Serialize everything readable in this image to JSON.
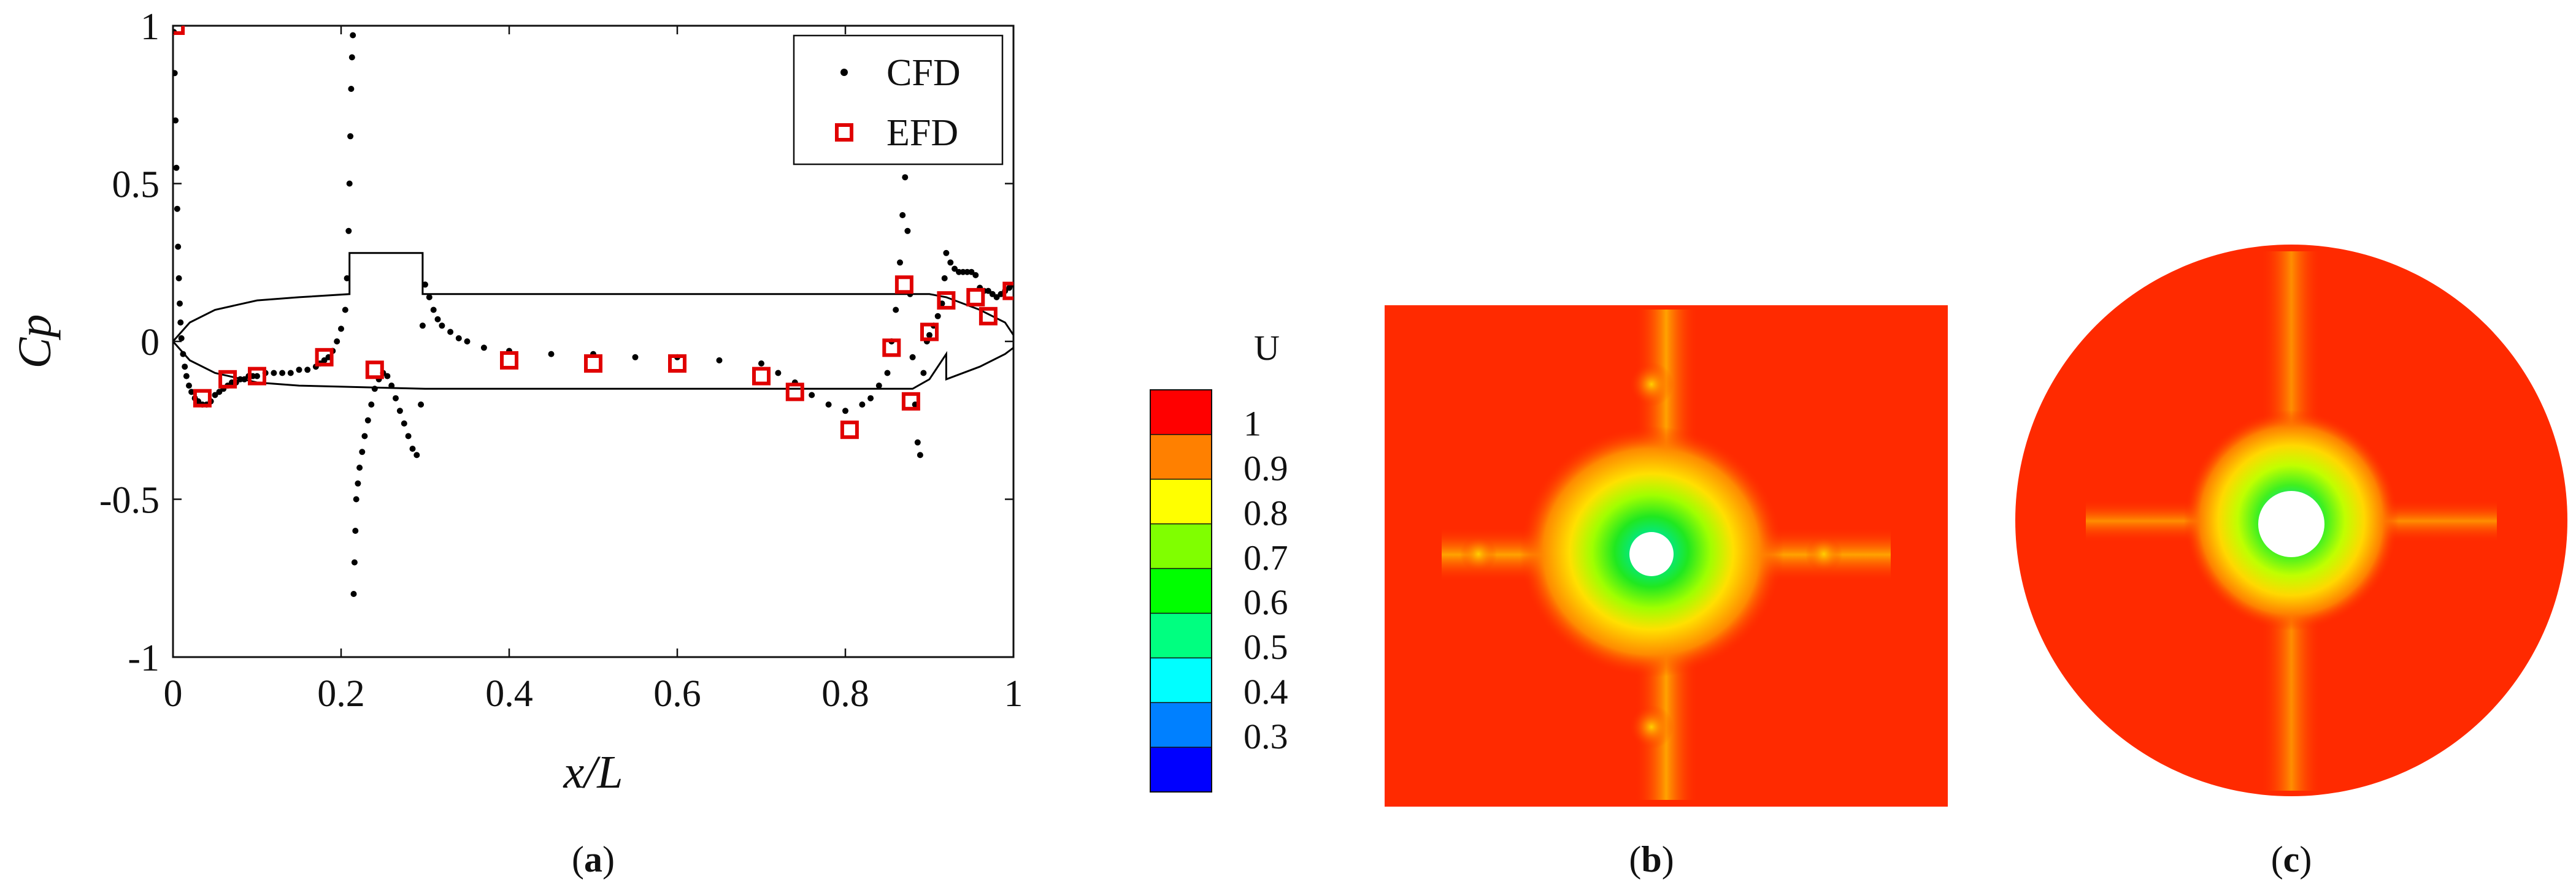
{
  "figure": {
    "panels": [
      {
        "id": "a",
        "open": "(",
        "letter": "a",
        "close": ")"
      },
      {
        "id": "b",
        "open": "(",
        "letter": "b",
        "close": ")"
      },
      {
        "id": "c",
        "open": "(",
        "letter": "c",
        "close": ")"
      }
    ]
  },
  "chart_data": [
    {
      "type": "scatter",
      "xlabel": "x/L",
      "ylabel": "Cp",
      "xlim": [
        0,
        1
      ],
      "ylim": [
        -1,
        1
      ],
      "xticks": [
        "0",
        "0.2",
        "0.4",
        "0.6",
        "0.8",
        "1"
      ],
      "yticks": [
        "1",
        "0.5",
        "0",
        "-0.5",
        "-1"
      ],
      "legend_position": "top-right",
      "grid": false,
      "series": [
        {
          "name": "CFD",
          "marker": "dot",
          "color": "#000000",
          "points": [
            [
              0.001,
              0.98
            ],
            [
              0.002,
              0.85
            ],
            [
              0.003,
              0.7
            ],
            [
              0.004,
              0.55
            ],
            [
              0.005,
              0.42
            ],
            [
              0.006,
              0.3
            ],
            [
              0.007,
              0.2
            ],
            [
              0.008,
              0.12
            ],
            [
              0.009,
              0.06
            ],
            [
              0.01,
              0.01
            ],
            [
              0.012,
              -0.04
            ],
            [
              0.014,
              -0.08
            ],
            [
              0.016,
              -0.11
            ],
            [
              0.019,
              -0.14
            ],
            [
              0.022,
              -0.16
            ],
            [
              0.026,
              -0.18
            ],
            [
              0.03,
              -0.19
            ],
            [
              0.035,
              -0.2
            ],
            [
              0.04,
              -0.2
            ],
            [
              0.045,
              -0.19
            ],
            [
              0.05,
              -0.17
            ],
            [
              0.055,
              -0.16
            ],
            [
              0.06,
              -0.15
            ],
            [
              0.065,
              -0.14
            ],
            [
              0.07,
              -0.13
            ],
            [
              0.075,
              -0.13
            ],
            [
              0.08,
              -0.12
            ],
            [
              0.085,
              -0.12
            ],
            [
              0.09,
              -0.11
            ],
            [
              0.095,
              -0.11
            ],
            [
              0.1,
              -0.11
            ],
            [
              0.11,
              -0.1
            ],
            [
              0.12,
              -0.1
            ],
            [
              0.13,
              -0.1
            ],
            [
              0.14,
              -0.1
            ],
            [
              0.15,
              -0.09
            ],
            [
              0.16,
              -0.09
            ],
            [
              0.17,
              -0.08
            ],
            [
              0.175,
              -0.07
            ],
            [
              0.18,
              -0.06
            ],
            [
              0.185,
              -0.05
            ],
            [
              0.19,
              -0.03
            ],
            [
              0.195,
              0.0
            ],
            [
              0.2,
              0.04
            ],
            [
              0.205,
              0.1
            ],
            [
              0.207,
              0.2
            ],
            [
              0.209,
              0.35
            ],
            [
              0.21,
              0.5
            ],
            [
              0.211,
              0.65
            ],
            [
              0.212,
              0.8
            ],
            [
              0.213,
              0.9
            ],
            [
              0.214,
              0.97
            ],
            [
              0.215,
              -0.8
            ],
            [
              0.216,
              -0.7
            ],
            [
              0.217,
              -0.6
            ],
            [
              0.218,
              -0.5
            ],
            [
              0.22,
              -0.45
            ],
            [
              0.222,
              -0.4
            ],
            [
              0.225,
              -0.35
            ],
            [
              0.228,
              -0.3
            ],
            [
              0.232,
              -0.25
            ],
            [
              0.236,
              -0.2
            ],
            [
              0.24,
              -0.15
            ],
            [
              0.245,
              -0.12
            ],
            [
              0.25,
              -0.1
            ],
            [
              0.255,
              -0.11
            ],
            [
              0.26,
              -0.14
            ],
            [
              0.265,
              -0.18
            ],
            [
              0.27,
              -0.22
            ],
            [
              0.275,
              -0.26
            ],
            [
              0.28,
              -0.3
            ],
            [
              0.285,
              -0.34
            ],
            [
              0.29,
              -0.36
            ],
            [
              0.295,
              -0.2
            ],
            [
              0.297,
              0.05
            ],
            [
              0.3,
              0.18
            ],
            [
              0.305,
              0.14
            ],
            [
              0.31,
              0.1
            ],
            [
              0.315,
              0.07
            ],
            [
              0.32,
              0.05
            ],
            [
              0.33,
              0.03
            ],
            [
              0.34,
              0.01
            ],
            [
              0.35,
              0.0
            ],
            [
              0.37,
              -0.02
            ],
            [
              0.4,
              -0.03
            ],
            [
              0.45,
              -0.04
            ],
            [
              0.5,
              -0.04
            ],
            [
              0.55,
              -0.05
            ],
            [
              0.6,
              -0.05
            ],
            [
              0.65,
              -0.06
            ],
            [
              0.7,
              -0.07
            ],
            [
              0.72,
              -0.1
            ],
            [
              0.74,
              -0.13
            ],
            [
              0.76,
              -0.17
            ],
            [
              0.78,
              -0.2
            ],
            [
              0.8,
              -0.22
            ],
            [
              0.82,
              -0.2
            ],
            [
              0.83,
              -0.18
            ],
            [
              0.84,
              -0.14
            ],
            [
              0.85,
              -0.1
            ],
            [
              0.855,
              0.0
            ],
            [
              0.86,
              0.1
            ],
            [
              0.865,
              0.25
            ],
            [
              0.868,
              0.4
            ],
            [
              0.871,
              0.52
            ],
            [
              0.874,
              0.35
            ],
            [
              0.877,
              0.15
            ],
            [
              0.88,
              -0.05
            ],
            [
              0.883,
              -0.2
            ],
            [
              0.886,
              -0.32
            ],
            [
              0.889,
              -0.36
            ],
            [
              0.893,
              -0.1
            ],
            [
              0.897,
              0.0
            ],
            [
              0.9,
              0.02
            ],
            [
              0.905,
              0.05
            ],
            [
              0.91,
              0.08
            ],
            [
              0.915,
              0.12
            ],
            [
              0.918,
              0.2
            ],
            [
              0.92,
              0.28
            ],
            [
              0.925,
              0.25
            ],
            [
              0.93,
              0.23
            ],
            [
              0.935,
              0.22
            ],
            [
              0.94,
              0.22
            ],
            [
              0.945,
              0.22
            ],
            [
              0.95,
              0.22
            ],
            [
              0.955,
              0.21
            ],
            [
              0.96,
              0.17
            ],
            [
              0.965,
              0.16
            ],
            [
              0.97,
              0.16
            ],
            [
              0.975,
              0.15
            ],
            [
              0.98,
              0.14
            ],
            [
              0.985,
              0.15
            ],
            [
              0.99,
              0.16
            ],
            [
              0.995,
              0.17
            ],
            [
              1.0,
              0.18
            ]
          ]
        },
        {
          "name": "EFD",
          "marker": "square",
          "color": "#e00000",
          "points": [
            [
              0.003,
              1.0
            ],
            [
              0.035,
              -0.18
            ],
            [
              0.065,
              -0.12
            ],
            [
              0.1,
              -0.11
            ],
            [
              0.18,
              -0.05
            ],
            [
              0.24,
              -0.09
            ],
            [
              0.4,
              -0.06
            ],
            [
              0.5,
              -0.07
            ],
            [
              0.6,
              -0.07
            ],
            [
              0.7,
              -0.11
            ],
            [
              0.74,
              -0.16
            ],
            [
              0.805,
              -0.28
            ],
            [
              0.855,
              -0.02
            ],
            [
              0.87,
              0.18
            ],
            [
              0.878,
              -0.19
            ],
            [
              0.9,
              0.03
            ],
            [
              0.92,
              0.13
            ],
            [
              0.955,
              0.14
            ],
            [
              0.97,
              0.08
            ],
            [
              0.998,
              0.16
            ]
          ]
        }
      ],
      "hull_outline": {
        "color": "#000000",
        "note_points": [
          [
            0.0,
            0.0
          ],
          [
            0.02,
            0.06
          ],
          [
            0.05,
            0.1
          ],
          [
            0.1,
            0.13
          ],
          [
            0.15,
            0.14
          ],
          [
            0.21,
            0.15
          ],
          [
            0.21,
            0.28
          ],
          [
            0.297,
            0.28
          ],
          [
            0.297,
            0.15
          ],
          [
            0.9,
            0.15
          ],
          [
            0.92,
            0.14
          ],
          [
            0.96,
            0.1
          ],
          [
            0.99,
            0.06
          ],
          [
            1.0,
            0.02
          ],
          [
            1.0,
            -0.02
          ],
          [
            0.99,
            -0.04
          ],
          [
            0.96,
            -0.08
          ],
          [
            0.92,
            -0.12
          ],
          [
            0.92,
            -0.04
          ],
          [
            0.9,
            -0.12
          ],
          [
            0.88,
            -0.15
          ],
          [
            0.85,
            -0.15
          ],
          [
            0.85,
            -0.15
          ],
          [
            0.3,
            -0.15
          ],
          [
            0.15,
            -0.14
          ],
          [
            0.1,
            -0.13
          ],
          [
            0.05,
            -0.1
          ],
          [
            0.02,
            -0.06
          ],
          [
            0.0,
            0.0
          ]
        ]
      }
    },
    {
      "type": "heatmap",
      "colorbar_title": "U",
      "colorbar_ticks": [
        "1",
        "0.9",
        "0.8",
        "0.7",
        "0.6",
        "0.5",
        "0.4",
        "0.3"
      ],
      "colorbar_levels": [
        {
          "from": 0.95,
          "color": "#ff0000"
        },
        {
          "from": 0.9,
          "color": "#ff8000"
        },
        {
          "from": 0.85,
          "color": "#ffff00"
        },
        {
          "from": 0.8,
          "color": "#ffff00"
        },
        {
          "from": 0.75,
          "color": "#80ff00"
        },
        {
          "from": 0.7,
          "color": "#00ff00"
        },
        {
          "from": 0.65,
          "color": "#00ff00"
        },
        {
          "from": 0.6,
          "color": "#00ff80"
        },
        {
          "from": 0.5,
          "color": "#00ffff"
        },
        {
          "from": 0.4,
          "color": "#0080ff"
        },
        {
          "from": 0.3,
          "color": "#0000ff"
        }
      ],
      "colors": {
        "background": "#ff2a00",
        "wake_outer": "#ffb000",
        "wake_mid": "#b8ff00",
        "wake_inner": "#00ff60",
        "wake_core": "#00c0ff"
      }
    }
  ]
}
